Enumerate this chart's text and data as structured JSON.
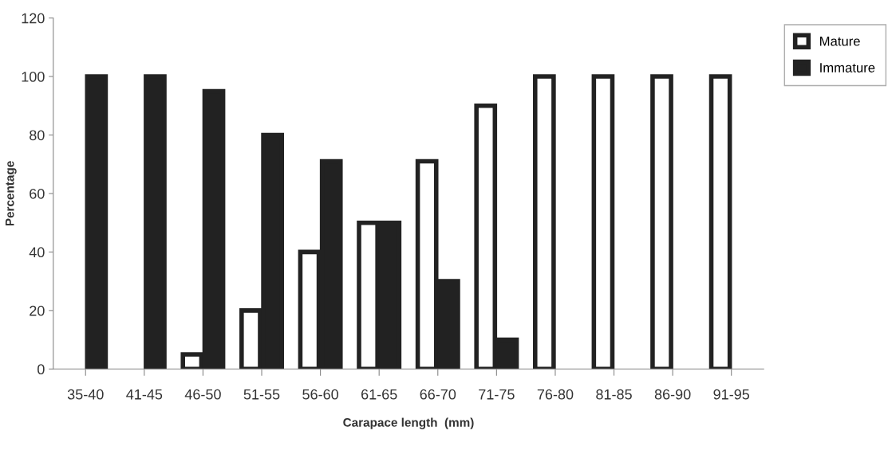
{
  "chart_data": {
    "type": "bar",
    "xlabel": "Carapace length  (mm)",
    "ylabel": "Percentage",
    "categories": [
      "35-40",
      "41-45",
      "46-50",
      "51-55",
      "56-60",
      "61-65",
      "66-70",
      "71-75",
      "76-80",
      "81-85",
      "86-90",
      "91-95"
    ],
    "series": [
      {
        "name": "Mature",
        "color": "#ffffff",
        "values": [
          0,
          0,
          5,
          20,
          40,
          50,
          71,
          90,
          100,
          100,
          100,
          100
        ]
      },
      {
        "name": "Immature",
        "color": "#222222",
        "values": [
          100,
          100,
          95,
          80,
          71,
          50,
          30,
          10,
          0,
          0,
          0,
          0
        ]
      }
    ],
    "ylim": [
      0,
      120
    ],
    "yticks": [
      0,
      20,
      40,
      60,
      80,
      100,
      120
    ],
    "grid": false,
    "legend": "top right"
  }
}
